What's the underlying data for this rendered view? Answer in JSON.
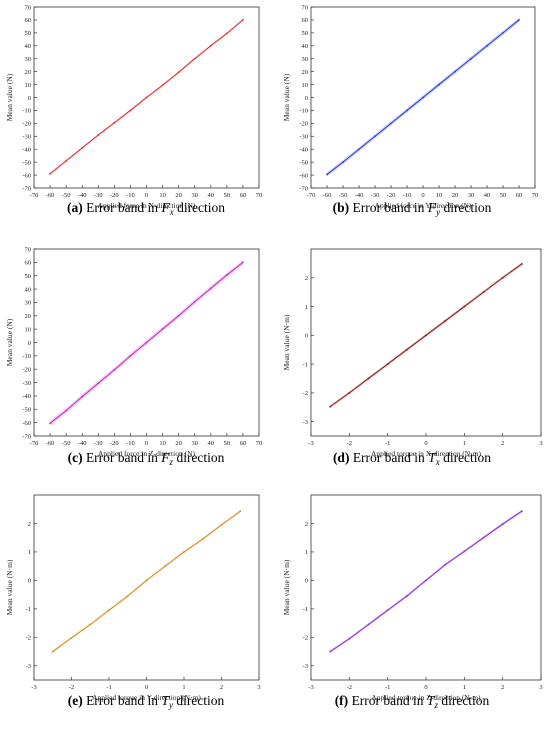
{
  "charts": [
    {
      "id": "a",
      "caption": {
        "label": "(a)",
        "pre": "Error band in ",
        "sym": "F",
        "sub": "x",
        "post": " direction"
      },
      "xlabel": "Applied force in X-direction (N)",
      "ylabel": "Mean value (N)",
      "color": "#e8262a",
      "band_color": "#f2a0a0",
      "band_width": 0.8
    },
    {
      "id": "b",
      "caption": {
        "label": "(b)",
        "pre": "Error band in ",
        "sym": "F",
        "sub": "y",
        "post": " direction"
      },
      "xlabel": "Applied force in Y-direction (N)",
      "ylabel": "Mean value (N)",
      "color": "#2b3fd6",
      "band_color": "#9aa6ee",
      "band_width": 1.6
    },
    {
      "id": "c",
      "caption": {
        "label": "(c)",
        "pre": "Error band in ",
        "sym": "F",
        "sub": "z",
        "post": " direction"
      },
      "xlabel": "Applied force in Z-direction (N)",
      "ylabel": "Mean value (N)",
      "color": "#c327c3",
      "band_color": "#e7a6e7",
      "band_width": 1.8
    },
    {
      "id": "d",
      "caption": {
        "label": "(d)",
        "pre": "Error band in ",
        "sym": "T",
        "sub": "x",
        "post": " direction"
      },
      "xlabel": "Applied torque in X-direction (N·m)",
      "ylabel": "Mean value (N·m)",
      "color": "#8b1a1a",
      "band_color": "#d9a8a8",
      "band_width": 0.06
    },
    {
      "id": "e",
      "caption": {
        "label": "(e)",
        "pre": "Error band in ",
        "sym": "T",
        "sub": "y",
        "post": " direction"
      },
      "xlabel": "Applied torque in Y-direction (N·m)",
      "ylabel": "Mean value (N·m)",
      "color": "#d98a1c",
      "band_color": "#f0c88e",
      "band_width": 0.04
    },
    {
      "id": "f",
      "caption": {
        "label": "(f)",
        "pre": "Error band in ",
        "sym": "T",
        "sub": "z",
        "post": " direction"
      },
      "xlabel": "Applied torque in Z-direction (N·m)",
      "ylabel": "Mean value (N·m)",
      "color": "#8a2be2",
      "band_color": "#c9a0f0",
      "band_width": 0.05
    }
  ],
  "chart_data": [
    {
      "type": "line",
      "title": "",
      "xlabel": "Applied force in X-direction (N)",
      "ylabel": "Mean value (N)",
      "xlim": [
        -70,
        70
      ],
      "ylim": [
        -70,
        70
      ],
      "xticks": [
        -70,
        -60,
        -50,
        -40,
        -30,
        -20,
        -10,
        0,
        10,
        20,
        30,
        40,
        50,
        60,
        70
      ],
      "yticks": [
        -70,
        -60,
        -50,
        -40,
        -30,
        -20,
        -10,
        0,
        10,
        20,
        30,
        40,
        50,
        60,
        70
      ],
      "x": [
        -60,
        -50,
        -40,
        -30,
        -20,
        -10,
        0,
        10,
        20,
        30,
        40,
        50,
        60
      ],
      "series": [
        {
          "values": [
            -59,
            -49,
            -39,
            -29,
            -19.5,
            -10,
            0,
            9.5,
            19.5,
            30,
            40,
            49.5,
            60
          ]
        }
      ]
    },
    {
      "type": "line",
      "title": "",
      "xlabel": "Applied force in Y-direction (N)",
      "ylabel": "Mean value (N)",
      "xlim": [
        -70,
        70
      ],
      "ylim": [
        -70,
        70
      ],
      "xticks": [
        -70,
        -60,
        -50,
        -40,
        -30,
        -20,
        -10,
        0,
        10,
        20,
        30,
        40,
        50,
        60,
        70
      ],
      "yticks": [
        -70,
        -60,
        -50,
        -40,
        -30,
        -20,
        -10,
        0,
        10,
        20,
        30,
        40,
        50,
        60,
        70
      ],
      "x": [
        -60,
        -50,
        -40,
        -30,
        -20,
        -10,
        0,
        10,
        20,
        30,
        40,
        50,
        60
      ],
      "series": [
        {
          "values": [
            -59.5,
            -50,
            -40,
            -30,
            -20,
            -10,
            0,
            10,
            20,
            30,
            40,
            50,
            60
          ]
        }
      ]
    },
    {
      "type": "line",
      "title": "",
      "xlabel": "Applied force in Z-direction (N)",
      "ylabel": "Mean value (N)",
      "xlim": [
        -70,
        70
      ],
      "ylim": [
        -70,
        70
      ],
      "xticks": [
        -70,
        -60,
        -50,
        -40,
        -30,
        -20,
        -10,
        0,
        10,
        20,
        30,
        40,
        50,
        60,
        70
      ],
      "yticks": [
        -70,
        -60,
        -50,
        -40,
        -30,
        -20,
        -10,
        0,
        10,
        20,
        30,
        40,
        50,
        60,
        70
      ],
      "x": [
        -60,
        -50,
        -40,
        -30,
        -20,
        -10,
        0,
        10,
        20,
        30,
        40,
        50,
        60
      ],
      "series": [
        {
          "values": [
            -60.5,
            -51,
            -40.5,
            -30.5,
            -20.5,
            -10,
            0,
            10,
            20,
            30.5,
            40.5,
            50.5,
            60
          ]
        }
      ]
    },
    {
      "type": "line",
      "title": "",
      "xlabel": "Applied torque in X-direction (N·m)",
      "ylabel": "Mean value (N·m)",
      "xlim": [
        -3,
        3
      ],
      "ylim": [
        -3.5,
        3
      ],
      "xticks": [
        -3,
        -2,
        -1,
        0,
        1,
        2,
        3
      ],
      "yticks": [
        -3,
        -2,
        -1,
        0,
        1,
        2
      ],
      "x": [
        -2.5,
        -2,
        -1.5,
        -1,
        -0.5,
        0,
        0.5,
        1,
        1.5,
        2,
        2.5
      ],
      "series": [
        {
          "values": [
            -2.48,
            -2,
            -1.5,
            -1,
            -0.5,
            0,
            0.5,
            1,
            1.5,
            2,
            2.48
          ]
        }
      ]
    },
    {
      "type": "line",
      "title": "",
      "xlabel": "Applied torque in Y-direction (N·m)",
      "ylabel": "Mean value (N·m)",
      "xlim": [
        -3,
        3
      ],
      "ylim": [
        -3.5,
        3
      ],
      "xticks": [
        -3,
        -2,
        -1,
        0,
        1,
        2,
        3
      ],
      "yticks": [
        -3,
        -2,
        -1,
        0,
        1,
        2
      ],
      "x": [
        -2.5,
        -2,
        -1.5,
        -1,
        -0.5,
        0,
        0.5,
        1,
        1.5,
        2,
        2.5
      ],
      "series": [
        {
          "values": [
            -2.5,
            -2.02,
            -1.55,
            -1.05,
            -0.55,
            0,
            0.5,
            1,
            1.45,
            1.95,
            2.43
          ]
        }
      ]
    },
    {
      "type": "line",
      "title": "",
      "xlabel": "Applied torque in Z-direction (N·m)",
      "ylabel": "Mean value (N·m)",
      "xlim": [
        -3,
        3
      ],
      "ylim": [
        -3.5,
        3
      ],
      "xticks": [
        -3,
        -2,
        -1,
        0,
        1,
        2,
        3
      ],
      "yticks": [
        -3,
        -2,
        -1,
        0,
        1,
        2
      ],
      "x": [
        -2.5,
        -2,
        -1.5,
        -1,
        -0.5,
        0,
        0.5,
        1,
        1.5,
        2,
        2.5
      ],
      "series": [
        {
          "values": [
            -2.5,
            -2.05,
            -1.55,
            -1.05,
            -0.55,
            0,
            0.55,
            1.02,
            1.5,
            1.98,
            2.43
          ]
        }
      ]
    }
  ]
}
